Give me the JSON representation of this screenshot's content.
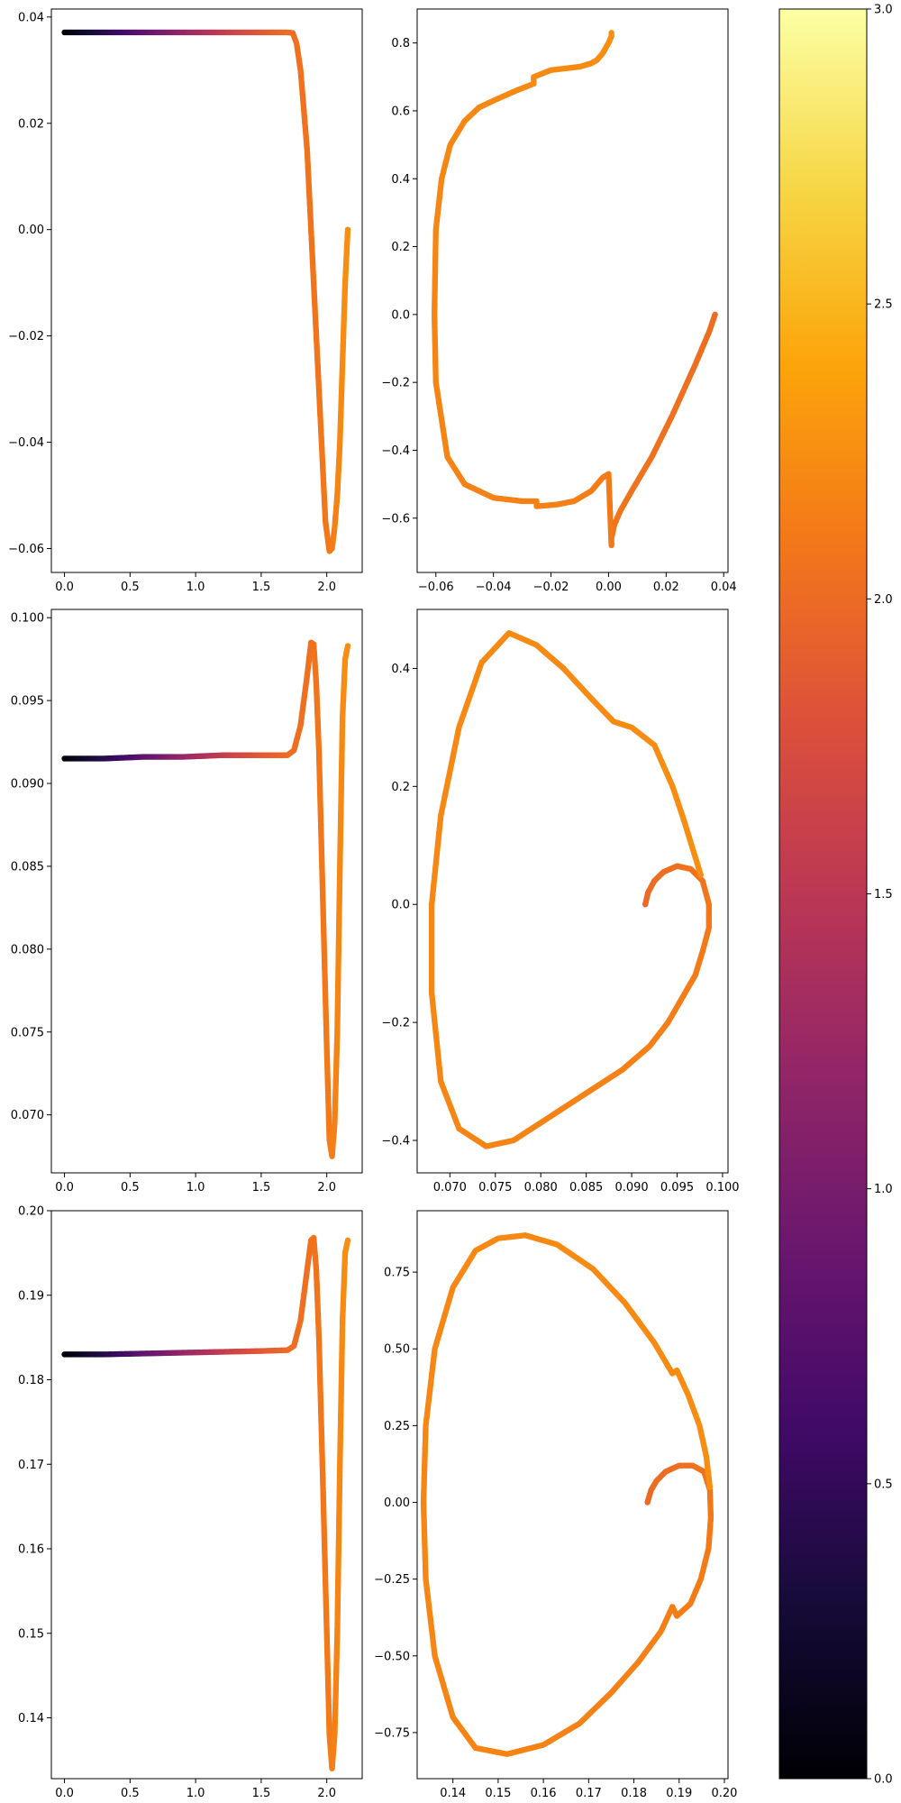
{
  "colorbar": {
    "colormap": "inferno",
    "range": [
      0.0,
      3.0
    ],
    "tick_values": [
      0.0,
      0.5,
      1.0,
      1.5,
      2.0,
      2.5,
      3.0
    ],
    "tick_labels": [
      "0.0",
      "0.5",
      "1.0",
      "1.5",
      "2.0",
      "2.5",
      "3.0"
    ]
  },
  "chart_data": [
    {
      "id": "r1-left",
      "type": "scatter",
      "xlim": [
        -0.1,
        2.27
      ],
      "ylim": [
        -0.0645,
        0.0415
      ],
      "xticks": [
        0.0,
        0.5,
        1.0,
        1.5,
        2.0
      ],
      "xtick_labels": [
        "0.0",
        "0.5",
        "1.0",
        "1.5",
        "2.0"
      ],
      "yticks": [
        -0.06,
        -0.04,
        -0.02,
        0.0,
        0.02,
        0.04
      ],
      "ytick_labels": [
        "−0.06",
        "−0.04",
        "−0.02",
        "0.00",
        "0.02",
        "0.04"
      ],
      "series": [
        {
          "x": [
            0.0,
            0.3,
            0.6,
            0.9,
            1.2,
            1.5,
            1.7,
            1.74,
            1.77,
            1.8,
            1.85,
            1.9,
            1.95,
            1.99,
            2.02,
            2.04,
            2.06,
            2.08,
            2.1,
            2.12,
            2.14,
            2.16
          ],
          "y": [
            0.0371,
            0.0371,
            0.0371,
            0.0371,
            0.0371,
            0.0371,
            0.0371,
            0.037,
            0.035,
            0.03,
            0.015,
            -0.01,
            -0.035,
            -0.055,
            -0.0605,
            -0.06,
            -0.056,
            -0.05,
            -0.04,
            -0.025,
            -0.01,
            0.0
          ],
          "c": [
            0.02,
            0.4,
            0.8,
            1.2,
            1.55,
            1.85,
            2.0,
            2.02,
            2.04,
            2.05,
            2.06,
            2.07,
            2.08,
            2.09,
            2.1,
            2.12,
            2.15,
            2.18,
            2.2,
            2.22,
            2.24,
            2.25
          ]
        }
      ]
    },
    {
      "id": "r1-right",
      "type": "scatter",
      "xlim": [
        -0.0665,
        0.0415
      ],
      "ylim": [
        -0.76,
        0.9
      ],
      "xticks": [
        -0.06,
        -0.04,
        -0.02,
        0.0,
        0.02,
        0.04
      ],
      "xtick_labels": [
        "−0.06",
        "−0.04",
        "−0.02",
        "0.00",
        "0.02",
        "0.04"
      ],
      "yticks": [
        -0.6,
        -0.4,
        -0.2,
        0.0,
        0.2,
        0.4,
        0.6,
        0.8
      ],
      "ytick_labels": [
        "−0.6",
        "−0.4",
        "−0.2",
        "0.0",
        "0.2",
        "0.4",
        "0.6",
        "0.8"
      ],
      "series": [
        {
          "x": [
            0.037,
            0.035,
            0.03,
            0.022,
            0.015,
            0.008,
            0.004,
            0.002,
            0.001,
            0.001,
            0.0,
            0.0,
            -0.002,
            -0.006,
            -0.012,
            -0.018,
            -0.025,
            -0.025,
            -0.03,
            -0.04,
            -0.05,
            -0.056,
            -0.06,
            -0.0605,
            -0.06,
            -0.058,
            -0.055,
            -0.05,
            -0.045,
            -0.04,
            -0.032,
            -0.026,
            -0.026,
            -0.02,
            -0.01,
            -0.006,
            -0.004,
            -0.002,
            0.0,
            0.001,
            0.001
          ],
          "y": [
            0.0,
            -0.05,
            -0.15,
            -0.3,
            -0.42,
            -0.52,
            -0.58,
            -0.62,
            -0.66,
            -0.68,
            -0.47,
            -0.47,
            -0.48,
            -0.52,
            -0.55,
            -0.56,
            -0.565,
            -0.55,
            -0.55,
            -0.54,
            -0.5,
            -0.42,
            -0.2,
            0.0,
            0.25,
            0.4,
            0.5,
            0.57,
            0.61,
            0.63,
            0.66,
            0.68,
            0.7,
            0.72,
            0.73,
            0.74,
            0.75,
            0.77,
            0.8,
            0.82,
            0.83
          ],
          "c": [
            2.0,
            2.02,
            2.03,
            2.04,
            2.05,
            2.06,
            2.07,
            2.08,
            2.09,
            2.1,
            2.1,
            2.11,
            2.12,
            2.13,
            2.14,
            2.15,
            2.15,
            2.16,
            2.16,
            2.17,
            2.17,
            2.18,
            2.18,
            2.18,
            2.19,
            2.19,
            2.2,
            2.2,
            2.2,
            2.21,
            2.21,
            2.22,
            2.22,
            2.22,
            2.23,
            2.23,
            2.24,
            2.24,
            2.25,
            2.25,
            2.25
          ]
        }
      ]
    },
    {
      "id": "r2-left",
      "type": "scatter",
      "xlim": [
        -0.1,
        2.27
      ],
      "ylim": [
        0.0665,
        0.1005
      ],
      "xticks": [
        0.0,
        0.5,
        1.0,
        1.5,
        2.0
      ],
      "xtick_labels": [
        "0.0",
        "0.5",
        "1.0",
        "1.5",
        "2.0"
      ],
      "yticks": [
        0.07,
        0.075,
        0.08,
        0.085,
        0.09,
        0.095,
        0.1
      ],
      "ytick_labels": [
        "0.070",
        "0.075",
        "0.080",
        "0.085",
        "0.090",
        "0.095",
        "0.100"
      ],
      "series": [
        {
          "x": [
            0.0,
            0.3,
            0.6,
            0.9,
            1.2,
            1.5,
            1.7,
            1.75,
            1.8,
            1.85,
            1.88,
            1.9,
            1.92,
            1.94,
            1.97,
            2.0,
            2.02,
            2.04,
            2.06,
            2.08,
            2.1,
            2.12,
            2.14,
            2.16
          ],
          "y": [
            0.0915,
            0.0915,
            0.0916,
            0.0916,
            0.0917,
            0.0917,
            0.0917,
            0.092,
            0.0935,
            0.0965,
            0.0985,
            0.0984,
            0.096,
            0.092,
            0.083,
            0.074,
            0.0685,
            0.0675,
            0.0695,
            0.075,
            0.085,
            0.094,
            0.0975,
            0.0983
          ],
          "c": [
            0.02,
            0.4,
            0.8,
            1.2,
            1.55,
            1.85,
            2.0,
            2.02,
            2.03,
            2.04,
            2.05,
            2.06,
            2.07,
            2.08,
            2.09,
            2.1,
            2.12,
            2.14,
            2.16,
            2.18,
            2.2,
            2.22,
            2.24,
            2.25
          ]
        }
      ]
    },
    {
      "id": "r2-right",
      "type": "scatter",
      "xlim": [
        0.0664,
        0.1006
      ],
      "ylim": [
        -0.455,
        0.5
      ],
      "xticks": [
        0.07,
        0.075,
        0.08,
        0.085,
        0.09,
        0.095,
        0.1
      ],
      "xtick_labels": [
        "0.070",
        "0.075",
        "0.080",
        "0.085",
        "0.090",
        "0.095",
        "0.100"
      ],
      "yticks": [
        -0.4,
        -0.2,
        0.0,
        0.2,
        0.4
      ],
      "ytick_labels": [
        "−0.4",
        "−0.2",
        "0.0",
        "0.2",
        "0.4"
      ],
      "series": [
        {
          "x": [
            0.0915,
            0.0918,
            0.0925,
            0.0935,
            0.095,
            0.0965,
            0.0978,
            0.0985,
            0.0985,
            0.0978,
            0.097,
            0.0955,
            0.094,
            0.092,
            0.089,
            0.085,
            0.081,
            0.077,
            0.074,
            0.071,
            0.069,
            0.068,
            0.068,
            0.069,
            0.071,
            0.0735,
            0.0765,
            0.0795,
            0.0825,
            0.0855,
            0.088,
            0.09,
            0.0925,
            0.0945,
            0.0958,
            0.0968,
            0.0976
          ],
          "y": [
            0.0,
            0.02,
            0.04,
            0.055,
            0.065,
            0.06,
            0.04,
            0.0,
            -0.04,
            -0.08,
            -0.12,
            -0.16,
            -0.2,
            -0.24,
            -0.28,
            -0.32,
            -0.36,
            -0.4,
            -0.41,
            -0.38,
            -0.3,
            -0.15,
            0.0,
            0.15,
            0.3,
            0.41,
            0.46,
            0.44,
            0.4,
            0.35,
            0.31,
            0.3,
            0.27,
            0.2,
            0.14,
            0.09,
            0.05
          ],
          "c": [
            1.98,
            2.0,
            2.01,
            2.02,
            2.03,
            2.05,
            2.07,
            2.09,
            2.1,
            2.11,
            2.12,
            2.13,
            2.14,
            2.15,
            2.16,
            2.17,
            2.17,
            2.18,
            2.18,
            2.19,
            2.19,
            2.2,
            2.2,
            2.2,
            2.21,
            2.21,
            2.22,
            2.22,
            2.22,
            2.23,
            2.23,
            2.23,
            2.24,
            2.24,
            2.24,
            2.25,
            2.25
          ]
        }
      ]
    },
    {
      "id": "r3-left",
      "type": "scatter",
      "xlim": [
        -0.1,
        2.27
      ],
      "ylim": [
        0.1328,
        0.2
      ],
      "xticks": [
        0.0,
        0.5,
        1.0,
        1.5,
        2.0
      ],
      "xtick_labels": [
        "0.0",
        "0.5",
        "1.0",
        "1.5",
        "2.0"
      ],
      "yticks": [
        0.14,
        0.15,
        0.16,
        0.17,
        0.18,
        0.19,
        0.2
      ],
      "ytick_labels": [
        "0.14",
        "0.15",
        "0.16",
        "0.17",
        "0.18",
        "0.19",
        "0.20"
      ],
      "series": [
        {
          "x": [
            0.0,
            0.3,
            0.6,
            0.9,
            1.2,
            1.5,
            1.7,
            1.75,
            1.8,
            1.85,
            1.88,
            1.9,
            1.92,
            1.94,
            1.97,
            2.0,
            2.02,
            2.04,
            2.06,
            2.08,
            2.1,
            2.12,
            2.14,
            2.16
          ],
          "y": [
            0.183,
            0.183,
            0.1831,
            0.1832,
            0.1833,
            0.1834,
            0.1835,
            0.184,
            0.187,
            0.193,
            0.1965,
            0.1968,
            0.193,
            0.185,
            0.168,
            0.15,
            0.138,
            0.134,
            0.138,
            0.15,
            0.17,
            0.187,
            0.195,
            0.1965
          ],
          "c": [
            0.02,
            0.4,
            0.8,
            1.2,
            1.55,
            1.85,
            2.0,
            2.02,
            2.03,
            2.04,
            2.05,
            2.06,
            2.07,
            2.08,
            2.09,
            2.1,
            2.12,
            2.14,
            2.16,
            2.18,
            2.2,
            2.22,
            2.24,
            2.25
          ]
        }
      ]
    },
    {
      "id": "r3-right",
      "type": "scatter",
      "xlim": [
        0.1321,
        0.2008
      ],
      "ylim": [
        -0.9,
        0.95
      ],
      "xticks": [
        0.14,
        0.15,
        0.16,
        0.17,
        0.18,
        0.19,
        0.2
      ],
      "xtick_labels": [
        "0.14",
        "0.15",
        "0.16",
        "0.17",
        "0.18",
        "0.19",
        "0.20"
      ],
      "yticks": [
        -0.75,
        -0.5,
        -0.25,
        0.0,
        0.25,
        0.5,
        0.75
      ],
      "ytick_labels": [
        "−0.75",
        "−0.50",
        "−0.25",
        "0.00",
        "0.25",
        "0.50",
        "0.75"
      ],
      "series": [
        {
          "x": [
            0.183,
            0.1838,
            0.185,
            0.187,
            0.19,
            0.193,
            0.1955,
            0.1968,
            0.197,
            0.1965,
            0.1948,
            0.1925,
            0.1895,
            0.1885,
            0.186,
            0.181,
            0.175,
            0.168,
            0.16,
            0.152,
            0.145,
            0.14,
            0.136,
            0.134,
            0.1335,
            0.134,
            0.136,
            0.14,
            0.145,
            0.15,
            0.156,
            0.163,
            0.171,
            0.178,
            0.1845,
            0.1885,
            0.1895,
            0.192,
            0.1945,
            0.196,
            0.1968
          ],
          "y": [
            0.0,
            0.04,
            0.07,
            0.1,
            0.12,
            0.12,
            0.1,
            0.04,
            -0.05,
            -0.15,
            -0.25,
            -0.33,
            -0.37,
            -0.34,
            -0.42,
            -0.52,
            -0.62,
            -0.72,
            -0.79,
            -0.82,
            -0.8,
            -0.7,
            -0.5,
            -0.25,
            0.0,
            0.25,
            0.5,
            0.7,
            0.82,
            0.86,
            0.87,
            0.84,
            0.76,
            0.65,
            0.52,
            0.42,
            0.43,
            0.35,
            0.25,
            0.15,
            0.05
          ],
          "c": [
            1.98,
            2.0,
            2.01,
            2.02,
            2.03,
            2.05,
            2.07,
            2.09,
            2.1,
            2.11,
            2.12,
            2.13,
            2.14,
            2.14,
            2.15,
            2.16,
            2.16,
            2.17,
            2.17,
            2.18,
            2.18,
            2.18,
            2.19,
            2.19,
            2.19,
            2.2,
            2.2,
            2.2,
            2.21,
            2.21,
            2.21,
            2.22,
            2.22,
            2.22,
            2.23,
            2.23,
            2.23,
            2.24,
            2.24,
            2.24,
            2.25
          ]
        }
      ]
    }
  ]
}
